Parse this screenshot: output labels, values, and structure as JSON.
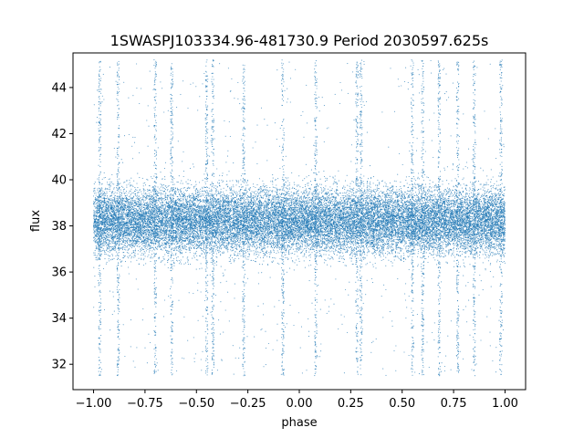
{
  "chart_data": {
    "type": "scatter",
    "title": "1SWASPJ103334.96-481730.9 Period 2030597.625s",
    "xlabel": "phase",
    "ylabel": "flux",
    "xlim": [
      -1.1,
      1.1
    ],
    "ylim": [
      30.9,
      45.5
    ],
    "x_ticks": [
      -1.0,
      -0.75,
      -0.5,
      -0.25,
      0.0,
      0.25,
      0.5,
      0.75,
      1.0
    ],
    "x_tick_labels": [
      "−1.00",
      "−0.75",
      "−0.50",
      "−0.25",
      "0.00",
      "0.25",
      "0.50",
      "0.75",
      "1.00"
    ],
    "y_ticks": [
      32,
      34,
      36,
      38,
      40,
      42,
      44
    ],
    "y_tick_labels": [
      "32",
      "34",
      "36",
      "38",
      "40",
      "42",
      "44"
    ],
    "grid": false,
    "legend": "none",
    "marker_color": "#1f77b4",
    "series": [
      {
        "x_range": [
          -1.0,
          1.0
        ],
        "median": 38.2,
        "core_band": [
          36.4,
          40.0
        ],
        "outlier_range": [
          31.5,
          45.2
        ],
        "approx_points": 25000,
        "spike_phases": [
          -0.97,
          -0.88,
          -0.7,
          -0.62,
          -0.45,
          -0.42,
          -0.27,
          -0.08,
          0.08,
          0.28,
          0.3,
          0.55,
          0.6,
          0.68,
          0.77,
          0.85,
          0.98
        ]
      }
    ]
  }
}
